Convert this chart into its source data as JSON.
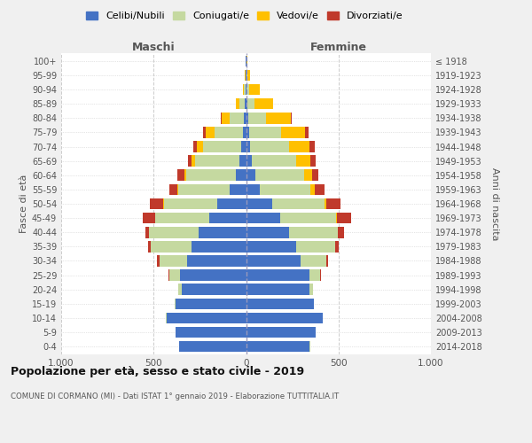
{
  "age_groups": [
    "0-4",
    "5-9",
    "10-14",
    "15-19",
    "20-24",
    "25-29",
    "30-34",
    "35-39",
    "40-44",
    "45-49",
    "50-54",
    "55-59",
    "60-64",
    "65-69",
    "70-74",
    "75-79",
    "80-84",
    "85-89",
    "90-94",
    "95-99",
    "100+"
  ],
  "birth_years": [
    "2014-2018",
    "2009-2013",
    "2004-2008",
    "1999-2003",
    "1994-1998",
    "1989-1993",
    "1984-1988",
    "1979-1983",
    "1974-1978",
    "1969-1973",
    "1964-1968",
    "1959-1963",
    "1954-1958",
    "1949-1953",
    "1944-1948",
    "1939-1943",
    "1934-1938",
    "1929-1933",
    "1924-1928",
    "1919-1923",
    "≤ 1918"
  ],
  "male_celibi": [
    360,
    380,
    430,
    380,
    350,
    355,
    320,
    295,
    255,
    200,
    155,
    90,
    55,
    35,
    25,
    15,
    10,
    5,
    3,
    2,
    2
  ],
  "male_coniugati": [
    1,
    1,
    2,
    5,
    15,
    60,
    150,
    220,
    270,
    290,
    290,
    275,
    270,
    240,
    210,
    155,
    80,
    30,
    8,
    2,
    1
  ],
  "male_vedovi": [
    0,
    0,
    0,
    0,
    0,
    0,
    0,
    1,
    1,
    2,
    3,
    5,
    10,
    20,
    30,
    50,
    40,
    20,
    5,
    1,
    0
  ],
  "male_divorziati": [
    0,
    0,
    0,
    0,
    1,
    3,
    10,
    15,
    20,
    65,
    70,
    45,
    35,
    20,
    20,
    15,
    5,
    2,
    1,
    0,
    0
  ],
  "female_celibi": [
    345,
    375,
    415,
    365,
    345,
    345,
    295,
    270,
    235,
    185,
    140,
    75,
    50,
    30,
    20,
    15,
    10,
    5,
    3,
    2,
    1
  ],
  "female_coniugati": [
    1,
    1,
    2,
    4,
    15,
    55,
    140,
    210,
    260,
    300,
    285,
    275,
    265,
    240,
    215,
    175,
    100,
    40,
    15,
    4,
    2
  ],
  "female_vedovi": [
    0,
    0,
    0,
    0,
    0,
    0,
    0,
    1,
    3,
    5,
    10,
    20,
    40,
    80,
    110,
    130,
    130,
    100,
    55,
    15,
    2
  ],
  "female_divorziati": [
    0,
    0,
    0,
    0,
    1,
    3,
    10,
    20,
    30,
    80,
    75,
    55,
    35,
    25,
    25,
    20,
    5,
    3,
    2,
    1,
    0
  ],
  "colors": {
    "celibi": "#4472c4",
    "coniugati": "#c5d9a0",
    "vedovi": "#ffc000",
    "divorziati": "#c0392b"
  },
  "xlim": 1000,
  "title": "Popolazione per età, sesso e stato civile - 2019",
  "subtitle": "COMUNE DI CORMANO (MI) - Dati ISTAT 1° gennaio 2019 - Elaborazione TUTTITALIA.IT",
  "ylabel_left": "Fasce di età",
  "ylabel_right": "Anni di nascita",
  "xlabel_left": "Maschi",
  "xlabel_right": "Femmine",
  "bg_color": "#f0f0f0",
  "plot_bg_color": "#ffffff",
  "legend_labels": [
    "Celibi/Nubili",
    "Coniugati/e",
    "Vedovi/e",
    "Divorziati/e"
  ]
}
